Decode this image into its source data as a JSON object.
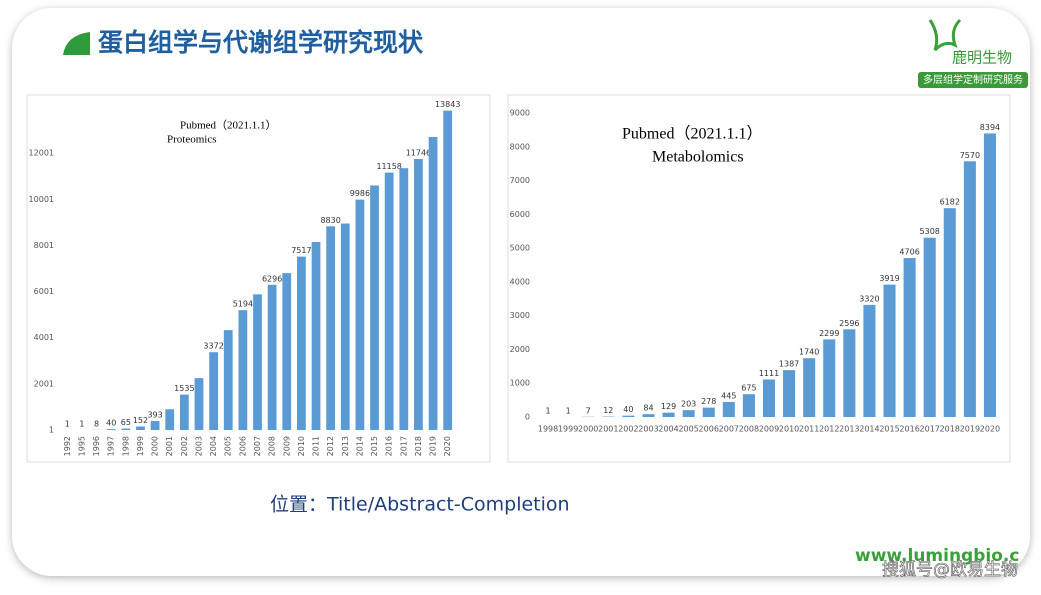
{
  "header": {
    "title": "蛋白组学与代谢组学研究现状",
    "logo_name": "鹿明生物",
    "logo_tagline": "多层组学定制研究服务"
  },
  "footer": {
    "note": "位置：Title/Abstract-Completion",
    "url": "www.lumingbio.c",
    "watermark": "搜狐号@欧易生物"
  },
  "chart_data": [
    {
      "type": "bar",
      "title": "Pubmed（2021.1.1）",
      "subtitle": "Proteomics",
      "color": "#5b9bd5",
      "categories": [
        "1992",
        "1995",
        "1996",
        "1997",
        "1998",
        "1999",
        "2000",
        "2001",
        "2002",
        "2003",
        "2004",
        "2005",
        "2006",
        "2007",
        "2008",
        "2009",
        "2010",
        "2011",
        "2012",
        "2013",
        "2014",
        "2015",
        "2016",
        "2017",
        "2018",
        "2019",
        "2020"
      ],
      "values": [
        1,
        1,
        8,
        40,
        65,
        152,
        393,
        900,
        1535,
        2250,
        3372,
        4330,
        5194,
        5880,
        6296,
        6800,
        7517,
        8150,
        8830,
        8950,
        9986,
        10600,
        11158,
        11350,
        11746,
        12700,
        13843
      ],
      "value_labels": [
        "1",
        "1",
        "8",
        "40",
        "65",
        "152",
        "393",
        null,
        "1535",
        null,
        "3372",
        null,
        "5194",
        null,
        "6296",
        null,
        "7517",
        null,
        "8830",
        null,
        "9986",
        null,
        "11158",
        null,
        "11746",
        null,
        "13843"
      ],
      "ylim": [
        1,
        14001
      ],
      "yticks": [
        1,
        2001,
        4001,
        6001,
        8001,
        10001,
        12001
      ]
    },
    {
      "type": "bar",
      "title": "Pubmed（2021.1.1）",
      "subtitle": "Metabolomics",
      "color": "#5b9bd5",
      "categories": [
        "1998",
        "1999",
        "2000",
        "2001",
        "2002",
        "2003",
        "2004",
        "2005",
        "2006",
        "2007",
        "2008",
        "2009",
        "2010",
        "2011",
        "2012",
        "2013",
        "2014",
        "2015",
        "2016",
        "2017",
        "2018",
        "2019",
        "2020"
      ],
      "values": [
        1,
        1,
        7,
        12,
        40,
        84,
        129,
        203,
        278,
        445,
        675,
        1111,
        1387,
        1740,
        2299,
        2596,
        3320,
        3919,
        4706,
        5308,
        6182,
        7570,
        8394
      ],
      "ylim": [
        0,
        9000
      ],
      "yticks": [
        0,
        1000,
        2000,
        3000,
        4000,
        5000,
        6000,
        7000,
        8000,
        9000
      ]
    }
  ]
}
